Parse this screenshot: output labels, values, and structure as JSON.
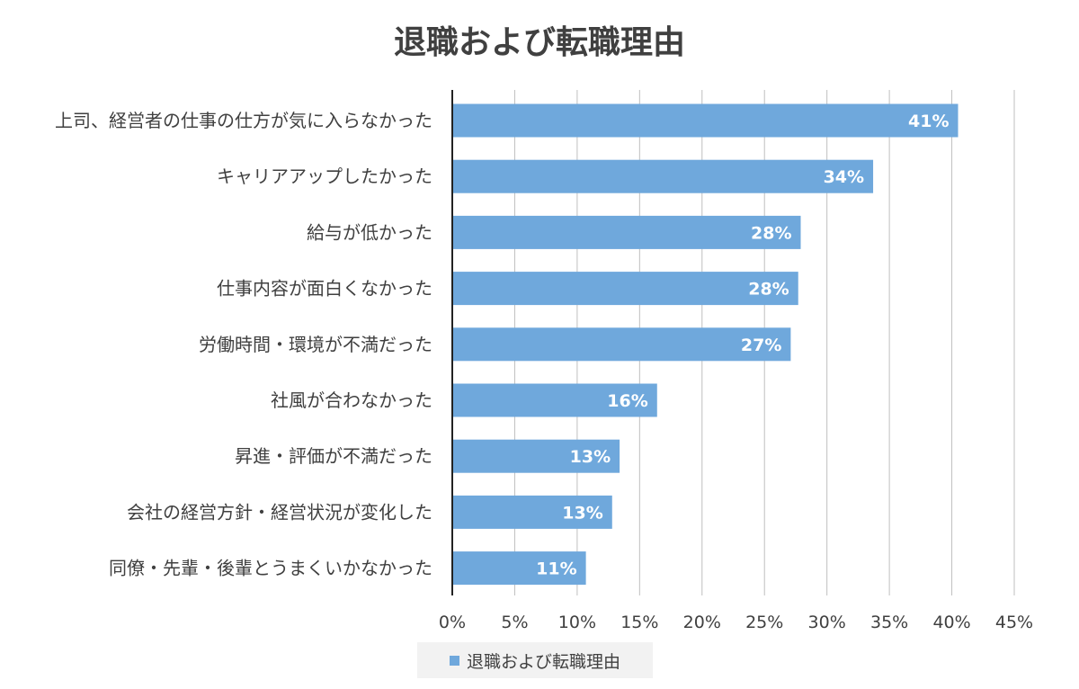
{
  "colors": {
    "bar": "#6fa8dc",
    "grid": "#bfbfbf",
    "axis": "#222222",
    "text": "#404040"
  },
  "chart_data": {
    "type": "bar",
    "orientation": "horizontal",
    "title": "退職および転職理由",
    "categories": [
      "上司、経営者の仕事の仕方が気に入らなかった",
      "キャリアアップしたかった",
      "給与が低かった",
      "仕事内容が面白くなかった",
      "労働時間・環境が不満だった",
      "社風が合わなかった",
      "昇進・評価が不満だった",
      "会社の経営方針・経営状況が変化した",
      "同僚・先輩・後輩とうまくいかなかった"
    ],
    "values": [
      40.5,
      33.7,
      27.9,
      27.7,
      27.1,
      16.4,
      13.4,
      12.8,
      10.7
    ],
    "data_labels": [
      "41%",
      "34%",
      "28%",
      "28%",
      "27%",
      "16%",
      "13%",
      "13%",
      "11%"
    ],
    "series": [
      {
        "name": "退職および転職理由"
      }
    ],
    "xlim": [
      0,
      45
    ],
    "x_ticks": [
      0,
      5,
      10,
      15,
      20,
      25,
      30,
      35,
      40,
      45
    ],
    "x_tick_labels": [
      "0%",
      "5%",
      "10%",
      "15%",
      "20%",
      "25%",
      "30%",
      "35%",
      "40%",
      "45%"
    ],
    "grid": "vertical",
    "legend_position": "bottom"
  }
}
